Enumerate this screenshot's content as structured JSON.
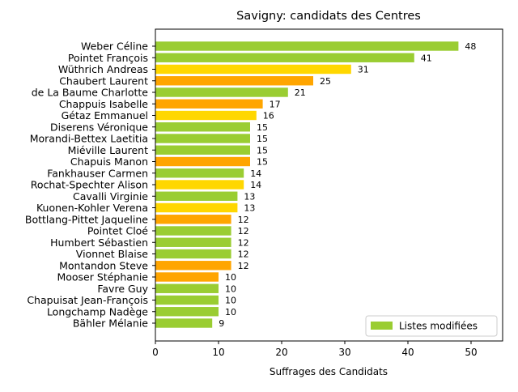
{
  "chart_data": {
    "type": "bar",
    "orientation": "horizontal",
    "title": "Savigny: candidats des Centres",
    "xlabel": "Suffrages des Candidats",
    "ylabel": "",
    "xlim": [
      0,
      55
    ],
    "xticks": [
      0,
      10,
      20,
      30,
      40,
      50
    ],
    "grid": false,
    "legend": {
      "position": "bottom-right",
      "entries": [
        {
          "label": "Listes modifiées",
          "color": "#9acd32"
        }
      ]
    },
    "categories": [
      "Weber Céline",
      "Pointet François",
      "Wüthrich Andreas",
      "Chaubert Laurent",
      "de La Baume Charlotte",
      "Chappuis Isabelle",
      "Gétaz Emmanuel",
      "Diserens Véronique",
      "Morandi-Bettex Laetitia",
      "Miéville Laurent",
      "Chapuis Manon",
      "Fankhauser Carmen",
      "Rochat-Spechter Alison",
      "Cavalli Virginie",
      "Kuonen-Kohler Verena",
      "Bottlang-Pittet Jaqueline",
      "Pointet Cloé",
      "Humbert Sébastien",
      "Vionnet Blaise",
      "Montandon Steve",
      "Mooser Stéphanie",
      "Favre Guy",
      "Chapuisat Jean-François",
      "Longchamp Nadège",
      "Bähler Mélanie"
    ],
    "values": [
      48,
      41,
      31,
      25,
      21,
      17,
      16,
      15,
      15,
      15,
      15,
      14,
      14,
      13,
      13,
      12,
      12,
      12,
      12,
      12,
      10,
      10,
      10,
      10,
      9
    ],
    "bar_colors": [
      "#9acd32",
      "#9acd32",
      "#ffd700",
      "#ffa500",
      "#9acd32",
      "#ffa500",
      "#ffd700",
      "#9acd32",
      "#9acd32",
      "#9acd32",
      "#ffa500",
      "#9acd32",
      "#ffd700",
      "#9acd32",
      "#ffd700",
      "#ffa500",
      "#9acd32",
      "#9acd32",
      "#9acd32",
      "#ffa500",
      "#ffa500",
      "#9acd32",
      "#9acd32",
      "#9acd32",
      "#9acd32"
    ]
  }
}
